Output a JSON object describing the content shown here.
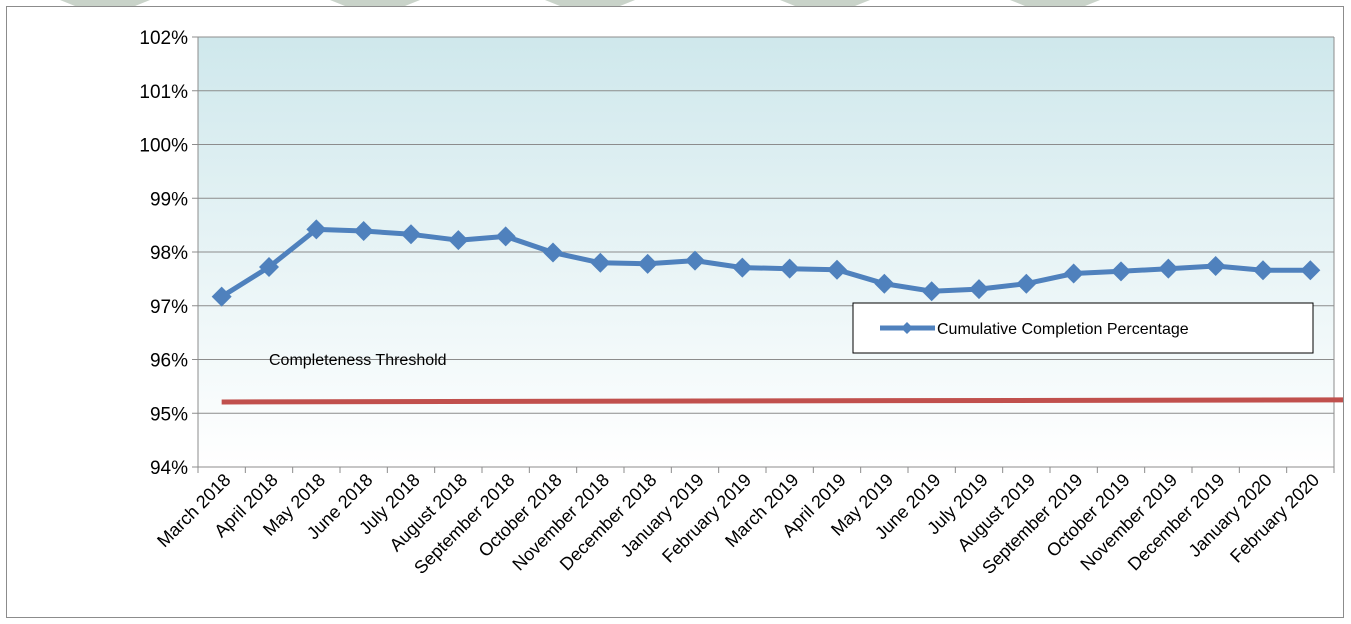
{
  "chart_data": {
    "type": "line",
    "categories": [
      "March 2018",
      "April 2018",
      "May 2018",
      "June 2018",
      "July 2018",
      "August 2018",
      "September 2018",
      "October 2018",
      "November 2018",
      "December 2018",
      "January 2019",
      "February 2019",
      "March 2019",
      "April 2019",
      "May 2019",
      "June 2019",
      "July 2019",
      "August 2019",
      "September 2019",
      "October 2019",
      "November 2019",
      "December 2019",
      "January 2020",
      "February 2020"
    ],
    "series": [
      {
        "name": "Cumulative Completion Percentage",
        "values": [
          97.17,
          97.72,
          98.42,
          98.39,
          98.33,
          98.22,
          98.29,
          97.99,
          97.8,
          97.78,
          97.84,
          97.71,
          97.69,
          97.67,
          97.41,
          97.27,
          97.31,
          97.41,
          97.6,
          97.64,
          97.69,
          97.74,
          97.66,
          97.66
        ],
        "color": "#4f81bd"
      }
    ],
    "threshold": {
      "label": "Completeness Threshold",
      "start_value": 95.21,
      "end_value": 95.25,
      "color": "#c0504d"
    },
    "title": "",
    "xlabel": "",
    "ylabel": "",
    "ylim": [
      94,
      102
    ],
    "yticks": [
      "94%",
      "95%",
      "96%",
      "97%",
      "98%",
      "99%",
      "100%",
      "101%",
      "102%"
    ],
    "grid": true,
    "legend": "center-right",
    "plot_background": [
      "#cfe8ec",
      "#ffffff"
    ]
  }
}
